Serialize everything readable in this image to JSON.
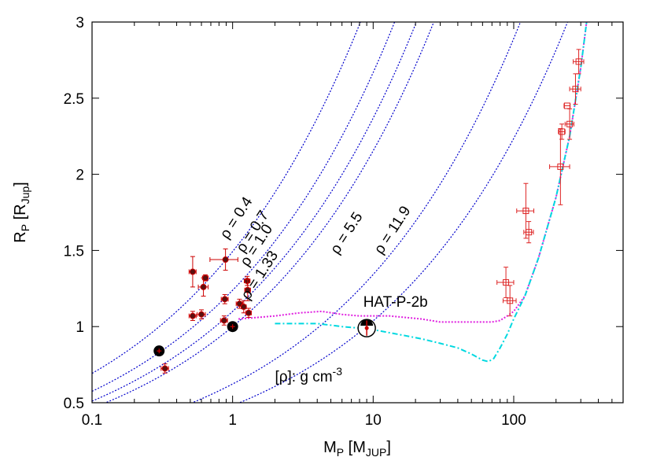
{
  "chart_data": {
    "type": "scatter",
    "x_scale": "log",
    "xlim": [
      0.1,
      600
    ],
    "ylim": [
      0.5,
      3
    ],
    "xlabel": {
      "main": "M",
      "sub": "P",
      "rest": " [M",
      "sub2": "JUP",
      "end": "]"
    },
    "ylabel": {
      "main": "R",
      "sub": "P",
      "rest": " [R",
      "sub2": "Jup",
      "end": "]"
    },
    "x_ticks": [
      {
        "value": 0.1,
        "label": "0.1"
      },
      {
        "value": 1,
        "label": "1"
      },
      {
        "value": 10,
        "label": "10"
      },
      {
        "value": 100,
        "label": "100"
      }
    ],
    "y_ticks": [
      {
        "value": 0.5,
        "label": "0.5"
      },
      {
        "value": 1.0,
        "label": "1"
      },
      {
        "value": 1.5,
        "label": "1.5"
      },
      {
        "value": 2.0,
        "label": "2"
      },
      {
        "value": 2.5,
        "label": "2.5"
      },
      {
        "value": 3.0,
        "label": "3"
      }
    ],
    "density_curves": {
      "color": "#0000cc",
      "items": [
        {
          "rho": 0.4,
          "label": "ρ = 0.4",
          "label_at": [
            0.92,
            1.57
          ]
        },
        {
          "rho": 0.7,
          "label": "ρ = 0.7",
          "label_at": [
            1.2,
            1.48
          ]
        },
        {
          "rho": 1.0,
          "label": "ρ = 1.0",
          "label_at": [
            1.28,
            1.39
          ]
        },
        {
          "rho": 1.33,
          "label": "ρ = 1.33",
          "label_at": [
            1.3,
            1.17
          ]
        },
        {
          "rho": 5.5,
          "label": "ρ = 5.5",
          "label_at": [
            5.6,
            1.47
          ]
        },
        {
          "rho": 11.9,
          "label": "ρ = 11.9",
          "label_at": [
            11.5,
            1.47
          ]
        }
      ]
    },
    "units_annotation": {
      "text": "[ρ]: g cm",
      "sup": "-3",
      "at": [
        2.0,
        0.64
      ]
    },
    "highlight_label": {
      "text": "HAT-P-2b",
      "at": [
        8.5,
        1.13
      ]
    },
    "magenta_model": {
      "color": "#e020e0",
      "points": [
        [
          1.1,
          1.05
        ],
        [
          1.5,
          1.06
        ],
        [
          2,
          1.07
        ],
        [
          3,
          1.09
        ],
        [
          4.3,
          1.1
        ],
        [
          6,
          1.08
        ],
        [
          8,
          1.07
        ],
        [
          10,
          1.07
        ],
        [
          13,
          1.07
        ],
        [
          17,
          1.06
        ],
        [
          22,
          1.05
        ],
        [
          30,
          1.03
        ],
        [
          40,
          1.03
        ],
        [
          55,
          1.03
        ],
        [
          70,
          1.03
        ],
        [
          80,
          1.04
        ],
        [
          90,
          1.07
        ],
        [
          100,
          1.1
        ],
        [
          120,
          1.2
        ],
        [
          150,
          1.45
        ],
        [
          200,
          1.85
        ],
        [
          250,
          2.25
        ],
        [
          300,
          2.7
        ],
        [
          330,
          3.0
        ]
      ]
    },
    "cyan_model": {
      "color": "#00d8e0",
      "points": [
        [
          2,
          1.02
        ],
        [
          3,
          1.02
        ],
        [
          4,
          1.02
        ],
        [
          6,
          1.0
        ],
        [
          8,
          0.99
        ],
        [
          10,
          0.98
        ],
        [
          13,
          0.96
        ],
        [
          17,
          0.94
        ],
        [
          22,
          0.92
        ],
        [
          30,
          0.89
        ],
        [
          40,
          0.86
        ],
        [
          50,
          0.82
        ],
        [
          60,
          0.78
        ],
        [
          66,
          0.77
        ],
        [
          72,
          0.79
        ],
        [
          80,
          0.86
        ],
        [
          90,
          0.95
        ],
        [
          100,
          1.05
        ],
        [
          120,
          1.2
        ],
        [
          150,
          1.45
        ],
        [
          200,
          1.85
        ],
        [
          250,
          2.25
        ],
        [
          300,
          2.7
        ],
        [
          330,
          3.0
        ]
      ]
    },
    "series": [
      {
        "name": "",
        "marker": "filled-circle",
        "color": "#cc0000",
        "points": [
          {
            "x": 0.52,
            "y": 1.36,
            "xerr": 0.03,
            "yerr": 0.1
          },
          {
            "x": 0.52,
            "y": 1.07,
            "xerr": 0.03,
            "yerr": 0.03
          },
          {
            "x": 0.6,
            "y": 1.08,
            "xerr": 0.04,
            "yerr": 0.03
          },
          {
            "x": 0.62,
            "y": 1.26,
            "xerr": 0.05,
            "yerr": 0.06
          },
          {
            "x": 0.64,
            "y": 1.32,
            "xerr": 0.03,
            "yerr": 0.02
          },
          {
            "x": 0.89,
            "y": 1.44,
            "xerr": 0.2,
            "yerr": 0.07
          },
          {
            "x": 0.88,
            "y": 1.18,
            "xerr": 0.05,
            "yerr": 0.03
          },
          {
            "x": 0.87,
            "y": 1.04,
            "xerr": 0.05,
            "yerr": 0.03
          },
          {
            "x": 1.12,
            "y": 1.15,
            "xerr": 0.06,
            "yerr": 0.03
          },
          {
            "x": 1.2,
            "y": 1.13,
            "xerr": 0.05,
            "yerr": 0.04
          },
          {
            "x": 1.27,
            "y": 1.3,
            "xerr": 0.06,
            "yerr": 0.03
          },
          {
            "x": 1.28,
            "y": 1.24,
            "xerr": 0.06,
            "yerr": 0.07
          },
          {
            "x": 1.3,
            "y": 1.09,
            "xerr": 0.06,
            "yerr": 0.03
          },
          {
            "x": 0.33,
            "y": 0.725,
            "xerr": 0.02,
            "yerr": 0.03
          }
        ]
      },
      {
        "name": "",
        "marker": "large-black-circle",
        "color": "#000000",
        "points": [
          {
            "x": 0.3,
            "y": 0.84,
            "xerr": 0.0,
            "yerr": 0.0
          },
          {
            "x": 1.0,
            "y": 1.0,
            "xerr": 0.0,
            "yerr": 0.0
          }
        ]
      },
      {
        "name": "",
        "marker": "open-square",
        "color": "#dd2222",
        "points": [
          {
            "x": 290,
            "y": 2.74,
            "xerr": 25,
            "yerr": 0.08
          },
          {
            "x": 275,
            "y": 2.56,
            "xerr": 25,
            "yerr": 0.1
          },
          {
            "x": 240,
            "y": 2.45,
            "xerr": 12,
            "yerr": 0.0
          },
          {
            "x": 250,
            "y": 2.33,
            "xerr": 18,
            "yerr": 0.1
          },
          {
            "x": 220,
            "y": 2.28,
            "xerr": 12,
            "yerr": 0.05
          },
          {
            "x": 215,
            "y": 2.05,
            "xerr": 35,
            "yerr": 0.25
          },
          {
            "x": 122,
            "y": 1.76,
            "xerr": 17,
            "yerr": 0.18
          },
          {
            "x": 128,
            "y": 1.62,
            "xerr": 10,
            "yerr": 0.07
          },
          {
            "x": 88,
            "y": 1.29,
            "xerr": 12,
            "yerr": 0.1
          },
          {
            "x": 94,
            "y": 1.17,
            "xerr": 10,
            "yerr": 0.1
          }
        ]
      },
      {
        "name": "",
        "marker": "highlight",
        "color": "#000000",
        "points": [
          {
            "x": 9.0,
            "y": 0.99,
            "xerr": 0.0,
            "yerr": 0.05
          }
        ]
      }
    ]
  }
}
